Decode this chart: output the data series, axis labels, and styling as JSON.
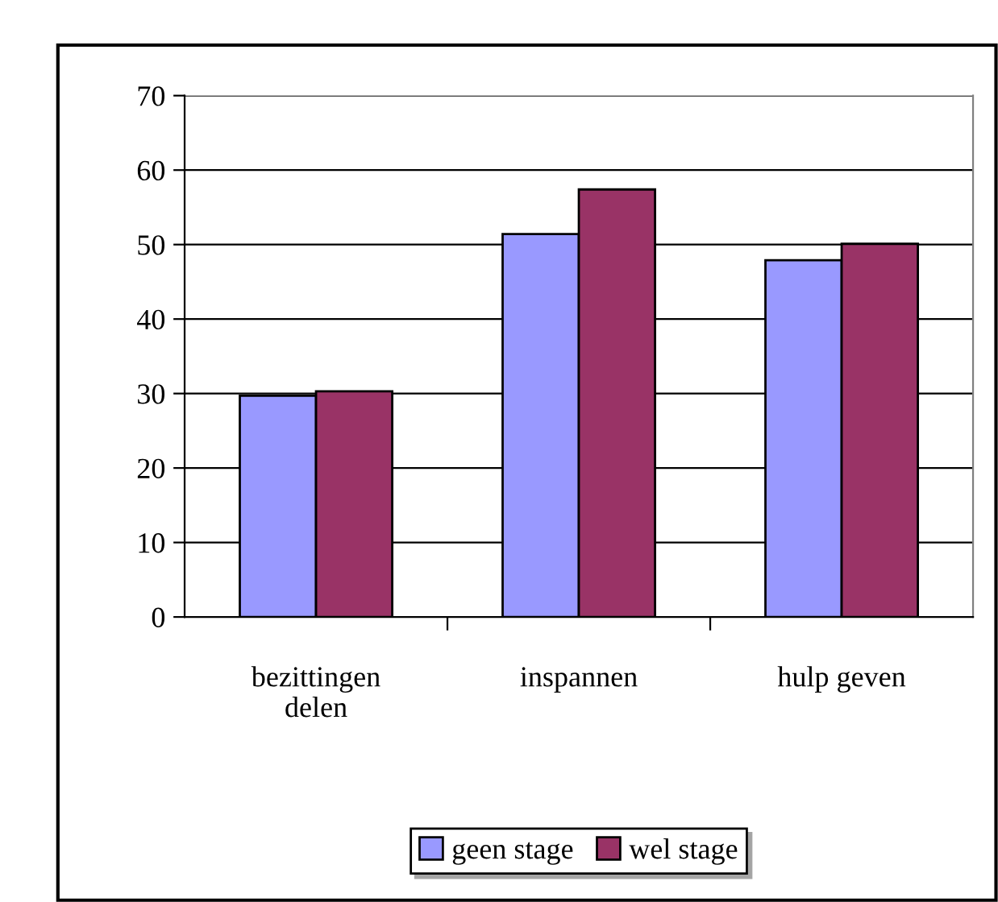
{
  "chart_data": {
    "type": "bar",
    "categories": [
      "bezittingen\ndelen",
      "inspannen",
      "hulp geven"
    ],
    "series": [
      {
        "name": "geen stage",
        "color": "#9999ff",
        "values": [
          29.7,
          51.4,
          47.9
        ]
      },
      {
        "name": "wel stage",
        "color": "#993366",
        "values": [
          30.3,
          57.4,
          50.1
        ]
      }
    ],
    "ylim": [
      0,
      70
    ],
    "yticks": [
      0,
      10,
      20,
      30,
      40,
      50,
      60,
      70
    ],
    "grid": "y",
    "legend": "bottom"
  }
}
